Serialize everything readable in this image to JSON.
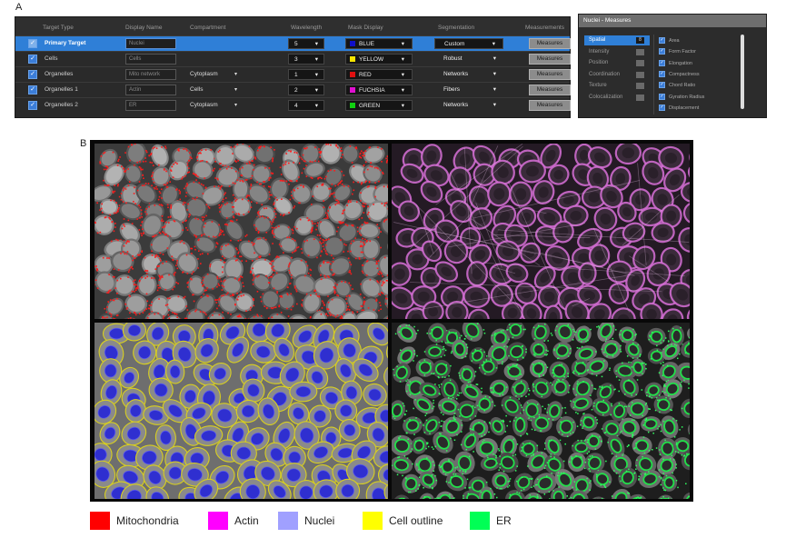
{
  "panels": {
    "a_label": "A",
    "b_label": "B"
  },
  "target_table": {
    "columns": [
      "Target Type",
      "Display Name",
      "Compartment",
      "Wavelength",
      "Mask Display",
      "Segmentation",
      "Measurements"
    ],
    "rows": [
      {
        "target": "Primary Target",
        "display_name": "Nuclei",
        "compartment": "",
        "wavelength": "5",
        "mask_color": "#1010c8",
        "mask_label": "BLUE",
        "segmentation": "Custom",
        "measures": "Measures"
      },
      {
        "target": "Cells",
        "display_name": "Cells",
        "compartment": "",
        "wavelength": "3",
        "mask_color": "#f5e400",
        "mask_label": "YELLOW",
        "segmentation": "Robust",
        "measures": "Measures"
      },
      {
        "target": "Organelles",
        "display_name": "Mito network",
        "compartment": "Cytoplasm",
        "wavelength": "1",
        "mask_color": "#e01010",
        "mask_label": "RED",
        "segmentation": "Networks",
        "measures": "Measures"
      },
      {
        "target": "Organelles 1",
        "display_name": "Actin",
        "compartment": "Cells",
        "wavelength": "2",
        "mask_color": "#e010d0",
        "mask_label": "FUCHSIA",
        "segmentation": "Fibers",
        "measures": "Measures"
      },
      {
        "target": "Organelles 2",
        "display_name": "ER",
        "compartment": "Cytoplasm",
        "wavelength": "4",
        "mask_color": "#10d010",
        "mask_label": "GREEN",
        "segmentation": "Networks",
        "measures": "Measures"
      }
    ]
  },
  "measures_dialog": {
    "title": "Nuclei - Measures",
    "categories": [
      {
        "label": "Spatial",
        "count": "8",
        "active": true
      },
      {
        "label": "Intensity",
        "count": "",
        "active": false
      },
      {
        "label": "Position",
        "count": "",
        "active": false
      },
      {
        "label": "Coordination",
        "count": "",
        "active": false
      },
      {
        "label": "Texture",
        "count": "",
        "active": false
      },
      {
        "label": "Colocalization",
        "count": "",
        "active": false
      }
    ],
    "items": [
      "Area",
      "Form Factor",
      "Elongation",
      "Compactness",
      "Chord Ratio",
      "Gyration Radius",
      "Displacement"
    ]
  },
  "legend": [
    {
      "label": "Mitochondria",
      "color": "#ff0000"
    },
    {
      "label": "Actin",
      "color": "#ff00ff"
    },
    {
      "label": "Nuclei",
      "color": "#a0a0ff"
    },
    {
      "label": "Cell outline",
      "color": "#ffff00"
    },
    {
      "label": "ER",
      "color": "#00ff55"
    }
  ]
}
